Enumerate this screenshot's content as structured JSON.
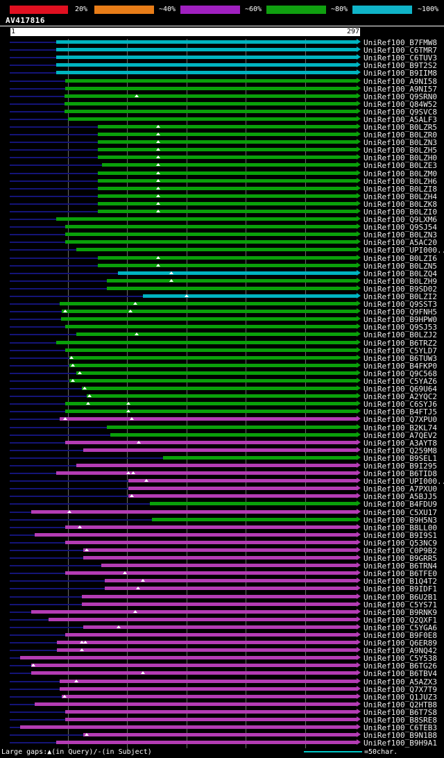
{
  "header": {
    "title": "AV417816",
    "scale": {
      "segments": [
        {
          "label": "20%",
          "color": "#e01020"
        },
        {
          "label": "~40%",
          "color": "#e87d18"
        },
        {
          "label": "~60%",
          "color": "#a020c0"
        },
        {
          "label": "~80%",
          "color": "#10a010"
        },
        {
          "label": "~100%",
          "color": "#10b4c8"
        }
      ]
    },
    "ruler": {
      "start": "1",
      "end": "297"
    }
  },
  "legend": {
    "gaps_text": "Large gaps:▲(in Query)/-(in Subject)",
    "scale_text": "=50char.",
    "scale_color": "#00c8c8"
  },
  "colors": {
    "cyan": "#00b4c0",
    "green": "#0aa00a",
    "magenta": "#b43cb4",
    "query_line": "#141478",
    "grid": "#6a6a6a"
  },
  "chart_data": {
    "type": "bar",
    "subtype": "blast-alignment-overview",
    "query": "AV417816",
    "xlim": [
      1,
      297
    ],
    "gridlines_x": [
      50,
      100,
      150,
      200,
      250
    ],
    "rows": [
      {
        "label": "UniRef100_B7FMW8",
        "color": "cyan",
        "start": 40,
        "end": 297,
        "gaps": []
      },
      {
        "label": "UniRef100_C6TMR7",
        "color": "cyan",
        "start": 40,
        "end": 297,
        "gaps": []
      },
      {
        "label": "UniRef100_C6TUV3",
        "color": "cyan",
        "start": 40,
        "end": 297,
        "gaps": []
      },
      {
        "label": "UniRef100_B9T2S2",
        "color": "cyan",
        "start": 40,
        "end": 297,
        "gaps": []
      },
      {
        "label": "UniRef100_B9IIM8",
        "color": "cyan",
        "start": 40,
        "end": 297,
        "gaps": []
      },
      {
        "label": "UniRef100_A9NI58",
        "color": "green",
        "start": 48,
        "end": 297,
        "gaps": []
      },
      {
        "label": "UniRef100_A9NI57",
        "color": "green",
        "start": 48,
        "end": 297,
        "gaps": []
      },
      {
        "label": "UniRef100_Q9SRN0",
        "color": "green",
        "start": 47,
        "end": 297,
        "gaps": [
          108
        ]
      },
      {
        "label": "UniRef100_Q84W52",
        "color": "green",
        "start": 47,
        "end": 297,
        "gaps": []
      },
      {
        "label": "UniRef100_Q9SVC8",
        "color": "green",
        "start": 47,
        "end": 297,
        "gaps": []
      },
      {
        "label": "UniRef100_A5ALF3",
        "color": "green",
        "start": 50,
        "end": 297,
        "gaps": []
      },
      {
        "label": "UniRef100_B0LZR5",
        "color": "green",
        "start": 75,
        "end": 297,
        "gaps": [
          126
        ]
      },
      {
        "label": "UniRef100_B0LZR0",
        "color": "green",
        "start": 75,
        "end": 297,
        "gaps": [
          126
        ]
      },
      {
        "label": "UniRef100_B0LZN3",
        "color": "green",
        "start": 75,
        "end": 297,
        "gaps": [
          126
        ]
      },
      {
        "label": "UniRef100_B0LZH5",
        "color": "green",
        "start": 75,
        "end": 297,
        "gaps": [
          126
        ]
      },
      {
        "label": "UniRef100_B0LZH0",
        "color": "green",
        "start": 75,
        "end": 297,
        "gaps": [
          126
        ]
      },
      {
        "label": "UniRef100_B0LZE3",
        "color": "green",
        "start": 79,
        "end": 297,
        "gaps": [
          126
        ]
      },
      {
        "label": "UniRef100_B0LZM0",
        "color": "green",
        "start": 75,
        "end": 297,
        "gaps": [
          126
        ]
      },
      {
        "label": "UniRef100_B0LZH6",
        "color": "green",
        "start": 75,
        "end": 297,
        "gaps": [
          126
        ]
      },
      {
        "label": "UniRef100_B0LZI8",
        "color": "green",
        "start": 75,
        "end": 297,
        "gaps": [
          126
        ]
      },
      {
        "label": "UniRef100_B0LZH4",
        "color": "green",
        "start": 75,
        "end": 297,
        "gaps": [
          126
        ]
      },
      {
        "label": "UniRef100_B0LZK8",
        "color": "green",
        "start": 75,
        "end": 297,
        "gaps": [
          126
        ]
      },
      {
        "label": "UniRef100_B0LZI0",
        "color": "green",
        "start": 75,
        "end": 297,
        "gaps": [
          126
        ]
      },
      {
        "label": "UniRef100_Q9LXM6",
        "color": "green",
        "start": 40,
        "end": 297,
        "gaps": []
      },
      {
        "label": "UniRef100_Q9SJ54",
        "color": "green",
        "start": 48,
        "end": 297,
        "gaps": []
      },
      {
        "label": "UniRef100_B0LZN3",
        "color": "green",
        "start": 48,
        "end": 297,
        "gaps": []
      },
      {
        "label": "UniRef100_A5AC20",
        "color": "green",
        "start": 48,
        "end": 297,
        "gaps": []
      },
      {
        "label": "UniRef100_UPI000...",
        "color": "green",
        "start": 57,
        "end": 297,
        "gaps": []
      },
      {
        "label": "UniRef100_B0LZI6",
        "color": "green",
        "start": 75,
        "end": 297,
        "gaps": [
          126
        ]
      },
      {
        "label": "UniRef100_B0LZN5",
        "color": "green",
        "start": 75,
        "end": 297,
        "gaps": [
          126
        ]
      },
      {
        "label": "UniRef100_B0LZQ4",
        "color": "cyan",
        "start": 92,
        "end": 297,
        "gaps": [
          137
        ]
      },
      {
        "label": "UniRef100_B0LZH9",
        "color": "green",
        "start": 83,
        "end": 297,
        "gaps": [
          137
        ]
      },
      {
        "label": "UniRef100_B9SD02",
        "color": "green",
        "start": 83,
        "end": 297,
        "gaps": []
      },
      {
        "label": "UniRef100_B0LZI2",
        "color": "cyan",
        "start": 113,
        "end": 297,
        "gaps": [
          150
        ]
      },
      {
        "label": "UniRef100_Q9SST3",
        "color": "green",
        "start": 43,
        "end": 297,
        "gaps": [
          107
        ]
      },
      {
        "label": "UniRef100_Q9FNH5",
        "color": "green",
        "start": 45,
        "end": 297,
        "gaps": [
          48,
          103
        ]
      },
      {
        "label": "UniRef100_B9HPW0",
        "color": "green",
        "start": 44,
        "end": 297,
        "gaps": []
      },
      {
        "label": "UniRef100_Q9SJ53",
        "color": "green",
        "start": 48,
        "end": 297,
        "gaps": []
      },
      {
        "label": "UniRef100_B0LZJ2",
        "color": "green",
        "start": 57,
        "end": 297,
        "gaps": [
          108
        ]
      },
      {
        "label": "UniRef100_B6TRZ2",
        "color": "green",
        "start": 40,
        "end": 297,
        "gaps": []
      },
      {
        "label": "UniRef100_C5YLD7",
        "color": "green",
        "start": 48,
        "end": 297,
        "gaps": []
      },
      {
        "label": "UniRef100_B6TUW3",
        "color": "green",
        "start": 51,
        "end": 297,
        "gaps": [
          53
        ]
      },
      {
        "label": "UniRef100_B4FKP0",
        "color": "green",
        "start": 51,
        "end": 297,
        "gaps": [
          54
        ]
      },
      {
        "label": "UniRef100_Q9C568",
        "color": "green",
        "start": 57,
        "end": 297,
        "gaps": [
          60
        ]
      },
      {
        "label": "UniRef100_C5YAZ6",
        "color": "green",
        "start": 51,
        "end": 297,
        "gaps": [
          54
        ]
      },
      {
        "label": "UniRef100_Q69U64",
        "color": "green",
        "start": 62,
        "end": 297,
        "gaps": [
          64
        ]
      },
      {
        "label": "UniRef100_A2YQC2",
        "color": "green",
        "start": 66,
        "end": 297,
        "gaps": [
          68
        ]
      },
      {
        "label": "UniRef100_C6SYJ6",
        "color": "green",
        "start": 48,
        "end": 297,
        "gaps": [
          67,
          101
        ]
      },
      {
        "label": "UniRef100_B4FTJ5",
        "color": "green",
        "start": 48,
        "end": 297,
        "gaps": [
          101
        ]
      },
      {
        "label": "UniRef100_Q7XPU0",
        "color": "magenta",
        "start": 43,
        "end": 297,
        "gaps": [
          48,
          104
        ]
      },
      {
        "label": "UniRef100_B2KL74",
        "color": "green",
        "start": 83,
        "end": 297,
        "gaps": []
      },
      {
        "label": "UniRef100_A7QEV2",
        "color": "green",
        "start": 86,
        "end": 297,
        "gaps": []
      },
      {
        "label": "UniRef100_A3AYT8",
        "color": "magenta",
        "start": 48,
        "end": 297,
        "gaps": [
          110
        ]
      },
      {
        "label": "UniRef100_Q259M8",
        "color": "magenta",
        "start": 63,
        "end": 297,
        "gaps": []
      },
      {
        "label": "UniRef100_B9SEL1",
        "color": "green",
        "start": 130,
        "end": 297,
        "gaps": []
      },
      {
        "label": "UniRef100_B9I295",
        "color": "magenta",
        "start": 57,
        "end": 297,
        "gaps": []
      },
      {
        "label": "UniRef100_B6TID8",
        "color": "magenta",
        "start": 40,
        "end": 297,
        "gaps": [
          101,
          105
        ]
      },
      {
        "label": "UniRef100_UPI000...",
        "color": "magenta",
        "start": 101,
        "end": 297,
        "gaps": [
          116
        ]
      },
      {
        "label": "UniRef100_A7PXU0",
        "color": "magenta",
        "start": 101,
        "end": 297,
        "gaps": []
      },
      {
        "label": "UniRef100_A5BJJ5",
        "color": "magenta",
        "start": 101,
        "end": 297,
        "gaps": [
          104
        ]
      },
      {
        "label": "UniRef100_B4FDU9",
        "color": "green",
        "start": 119,
        "end": 297,
        "gaps": []
      },
      {
        "label": "UniRef100_C5XU17",
        "color": "magenta",
        "start": 19,
        "end": 297,
        "gaps": [
          51
        ]
      },
      {
        "label": "UniRef100_B9H5N3",
        "color": "green",
        "start": 121,
        "end": 297,
        "gaps": []
      },
      {
        "label": "UniRef100_B8LL00",
        "color": "magenta",
        "start": 48,
        "end": 297,
        "gaps": [
          60
        ]
      },
      {
        "label": "UniRef100_B9I9S1",
        "color": "magenta",
        "start": 22,
        "end": 297,
        "gaps": []
      },
      {
        "label": "UniRef100_Q53NC9",
        "color": "magenta",
        "start": 48,
        "end": 297,
        "gaps": []
      },
      {
        "label": "UniRef100_C0P9B2",
        "color": "magenta",
        "start": 63,
        "end": 297,
        "gaps": [
          66
        ]
      },
      {
        "label": "UniRef100_B9GRR5",
        "color": "magenta",
        "start": 63,
        "end": 297,
        "gaps": []
      },
      {
        "label": "UniRef100_B6TRN4",
        "color": "magenta",
        "start": 78,
        "end": 297,
        "gaps": []
      },
      {
        "label": "UniRef100_B6TFE0",
        "color": "magenta",
        "start": 48,
        "end": 297,
        "gaps": [
          98
        ]
      },
      {
        "label": "UniRef100_B1Q4T2",
        "color": "magenta",
        "start": 81,
        "end": 297,
        "gaps": [
          113
        ]
      },
      {
        "label": "UniRef100_B9IDF1",
        "color": "magenta",
        "start": 81,
        "end": 297,
        "gaps": [
          109
        ]
      },
      {
        "label": "UniRef100_B6U2B1",
        "color": "magenta",
        "start": 62,
        "end": 297,
        "gaps": []
      },
      {
        "label": "UniRef100_C5YS71",
        "color": "magenta",
        "start": 62,
        "end": 297,
        "gaps": []
      },
      {
        "label": "UniRef100_B9RNK9",
        "color": "magenta",
        "start": 19,
        "end": 297,
        "gaps": [
          107
        ]
      },
      {
        "label": "UniRef100_Q2QXF1",
        "color": "magenta",
        "start": 34,
        "end": 297,
        "gaps": []
      },
      {
        "label": "UniRef100_C5YGA6",
        "color": "magenta",
        "start": 63,
        "end": 297,
        "gaps": [
          93
        ]
      },
      {
        "label": "UniRef100_B9F0E8",
        "color": "magenta",
        "start": 48,
        "end": 297,
        "gaps": []
      },
      {
        "label": "UniRef100_Q6ER89",
        "color": "magenta",
        "start": 41,
        "end": 297,
        "gaps": [
          62,
          65
        ]
      },
      {
        "label": "UniRef100_A9NQ42",
        "color": "magenta",
        "start": 41,
        "end": 297,
        "gaps": [
          62
        ]
      },
      {
        "label": "UniRef100_C5Y538",
        "color": "magenta",
        "start": 10,
        "end": 297,
        "gaps": []
      },
      {
        "label": "UniRef100_B6TG26",
        "color": "magenta",
        "start": 19,
        "end": 297,
        "gaps": [
          21
        ]
      },
      {
        "label": "UniRef100_B6TBV4",
        "color": "magenta",
        "start": 19,
        "end": 297,
        "gaps": [
          113
        ]
      },
      {
        "label": "UniRef100_A5AZX3",
        "color": "magenta",
        "start": 43,
        "end": 297,
        "gaps": [
          57
        ]
      },
      {
        "label": "UniRef100_Q7X7T9",
        "color": "magenta",
        "start": 43,
        "end": 297,
        "gaps": []
      },
      {
        "label": "UniRef100_Q1JUZ3",
        "color": "magenta",
        "start": 45,
        "end": 297,
        "gaps": [
          47
        ]
      },
      {
        "label": "UniRef100_Q2HTB8",
        "color": "magenta",
        "start": 22,
        "end": 297,
        "gaps": []
      },
      {
        "label": "UniRef100_B6T7S8",
        "color": "magenta",
        "start": 48,
        "end": 297,
        "gaps": []
      },
      {
        "label": "UniRef100_B8SRE8",
        "color": "magenta",
        "start": 48,
        "end": 297,
        "gaps": []
      },
      {
        "label": "UniRef100_C6TEB3",
        "color": "magenta",
        "start": 10,
        "end": 297,
        "gaps": []
      },
      {
        "label": "UniRef100_B9N1B8",
        "color": "magenta",
        "start": 63,
        "end": 297,
        "gaps": [
          66
        ]
      },
      {
        "label": "UniRef100_B9H9A1",
        "color": "magenta",
        "start": 40,
        "end": 297,
        "gaps": []
      }
    ]
  }
}
